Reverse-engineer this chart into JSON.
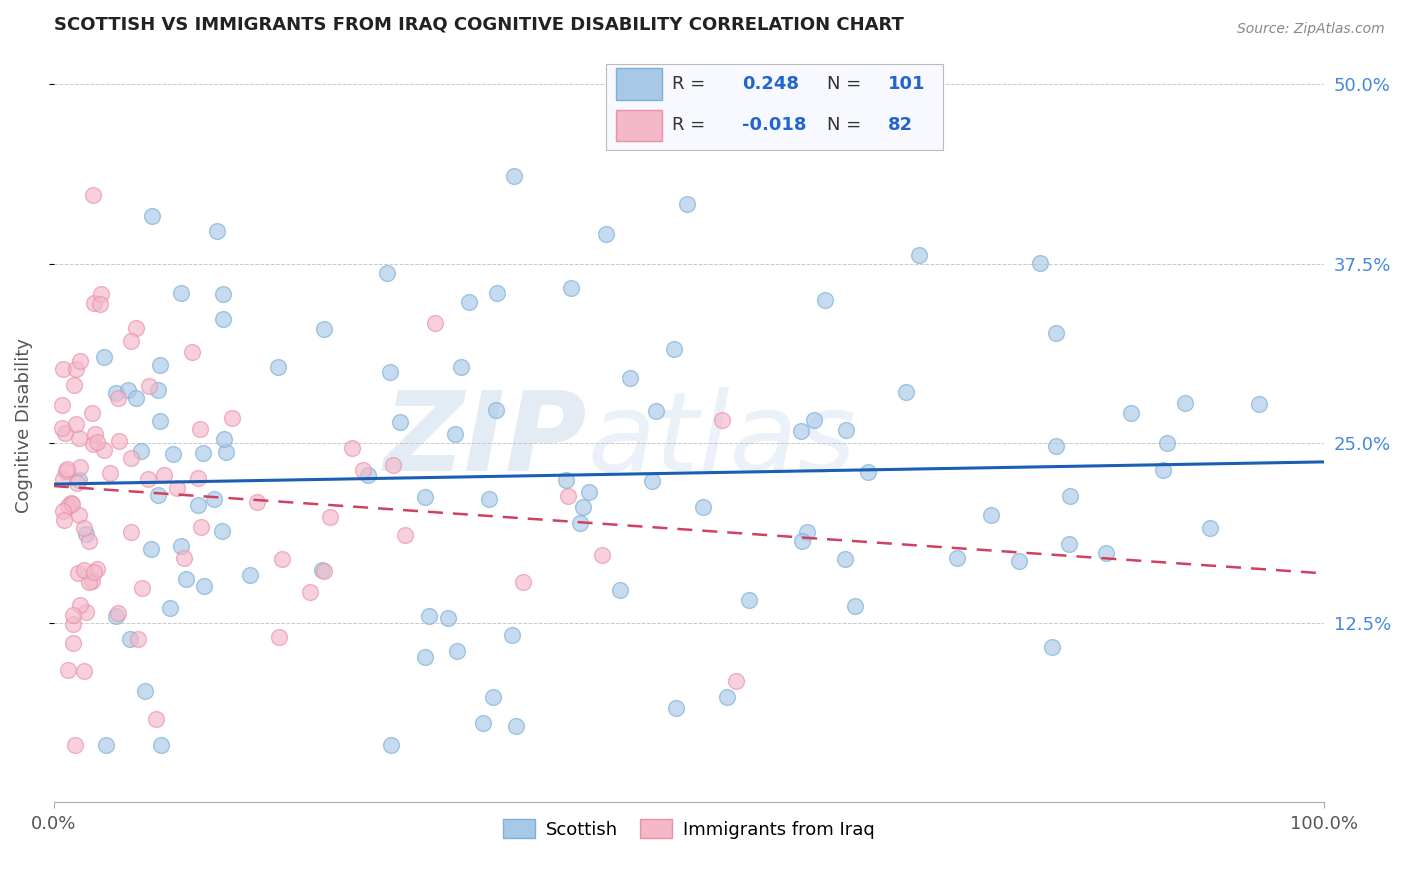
{
  "title": "SCOTTISH VS IMMIGRANTS FROM IRAQ COGNITIVE DISABILITY CORRELATION CHART",
  "source": "Source: ZipAtlas.com",
  "ylabel": "Cognitive Disability",
  "watermark": "ZIPatlas",
  "r_scottish": "0.248",
  "n_scottish": "101",
  "r_iraq": "-0.018",
  "n_iraq": "82",
  "xlim": [
    0.0,
    1.0
  ],
  "ylim": [
    0.0,
    0.525
  ],
  "yticks": [
    0.125,
    0.25,
    0.375,
    0.5
  ],
  "ytick_labels": [
    "12.5%",
    "25.0%",
    "37.5%",
    "50.0%"
  ],
  "blue_color": "#a8c8e8",
  "blue_edge": "#7bafd4",
  "pink_color": "#f4b8c8",
  "pink_edge": "#e890a8",
  "trend_blue": "#1a5fb4",
  "trend_pink": "#d04060",
  "background": "#ffffff",
  "grid_color": "#bbbbbb",
  "text_color": "#444444",
  "right_axis_color": "#4488dd",
  "legend_text_color": "#333333",
  "legend_value_color": "#2266cc"
}
